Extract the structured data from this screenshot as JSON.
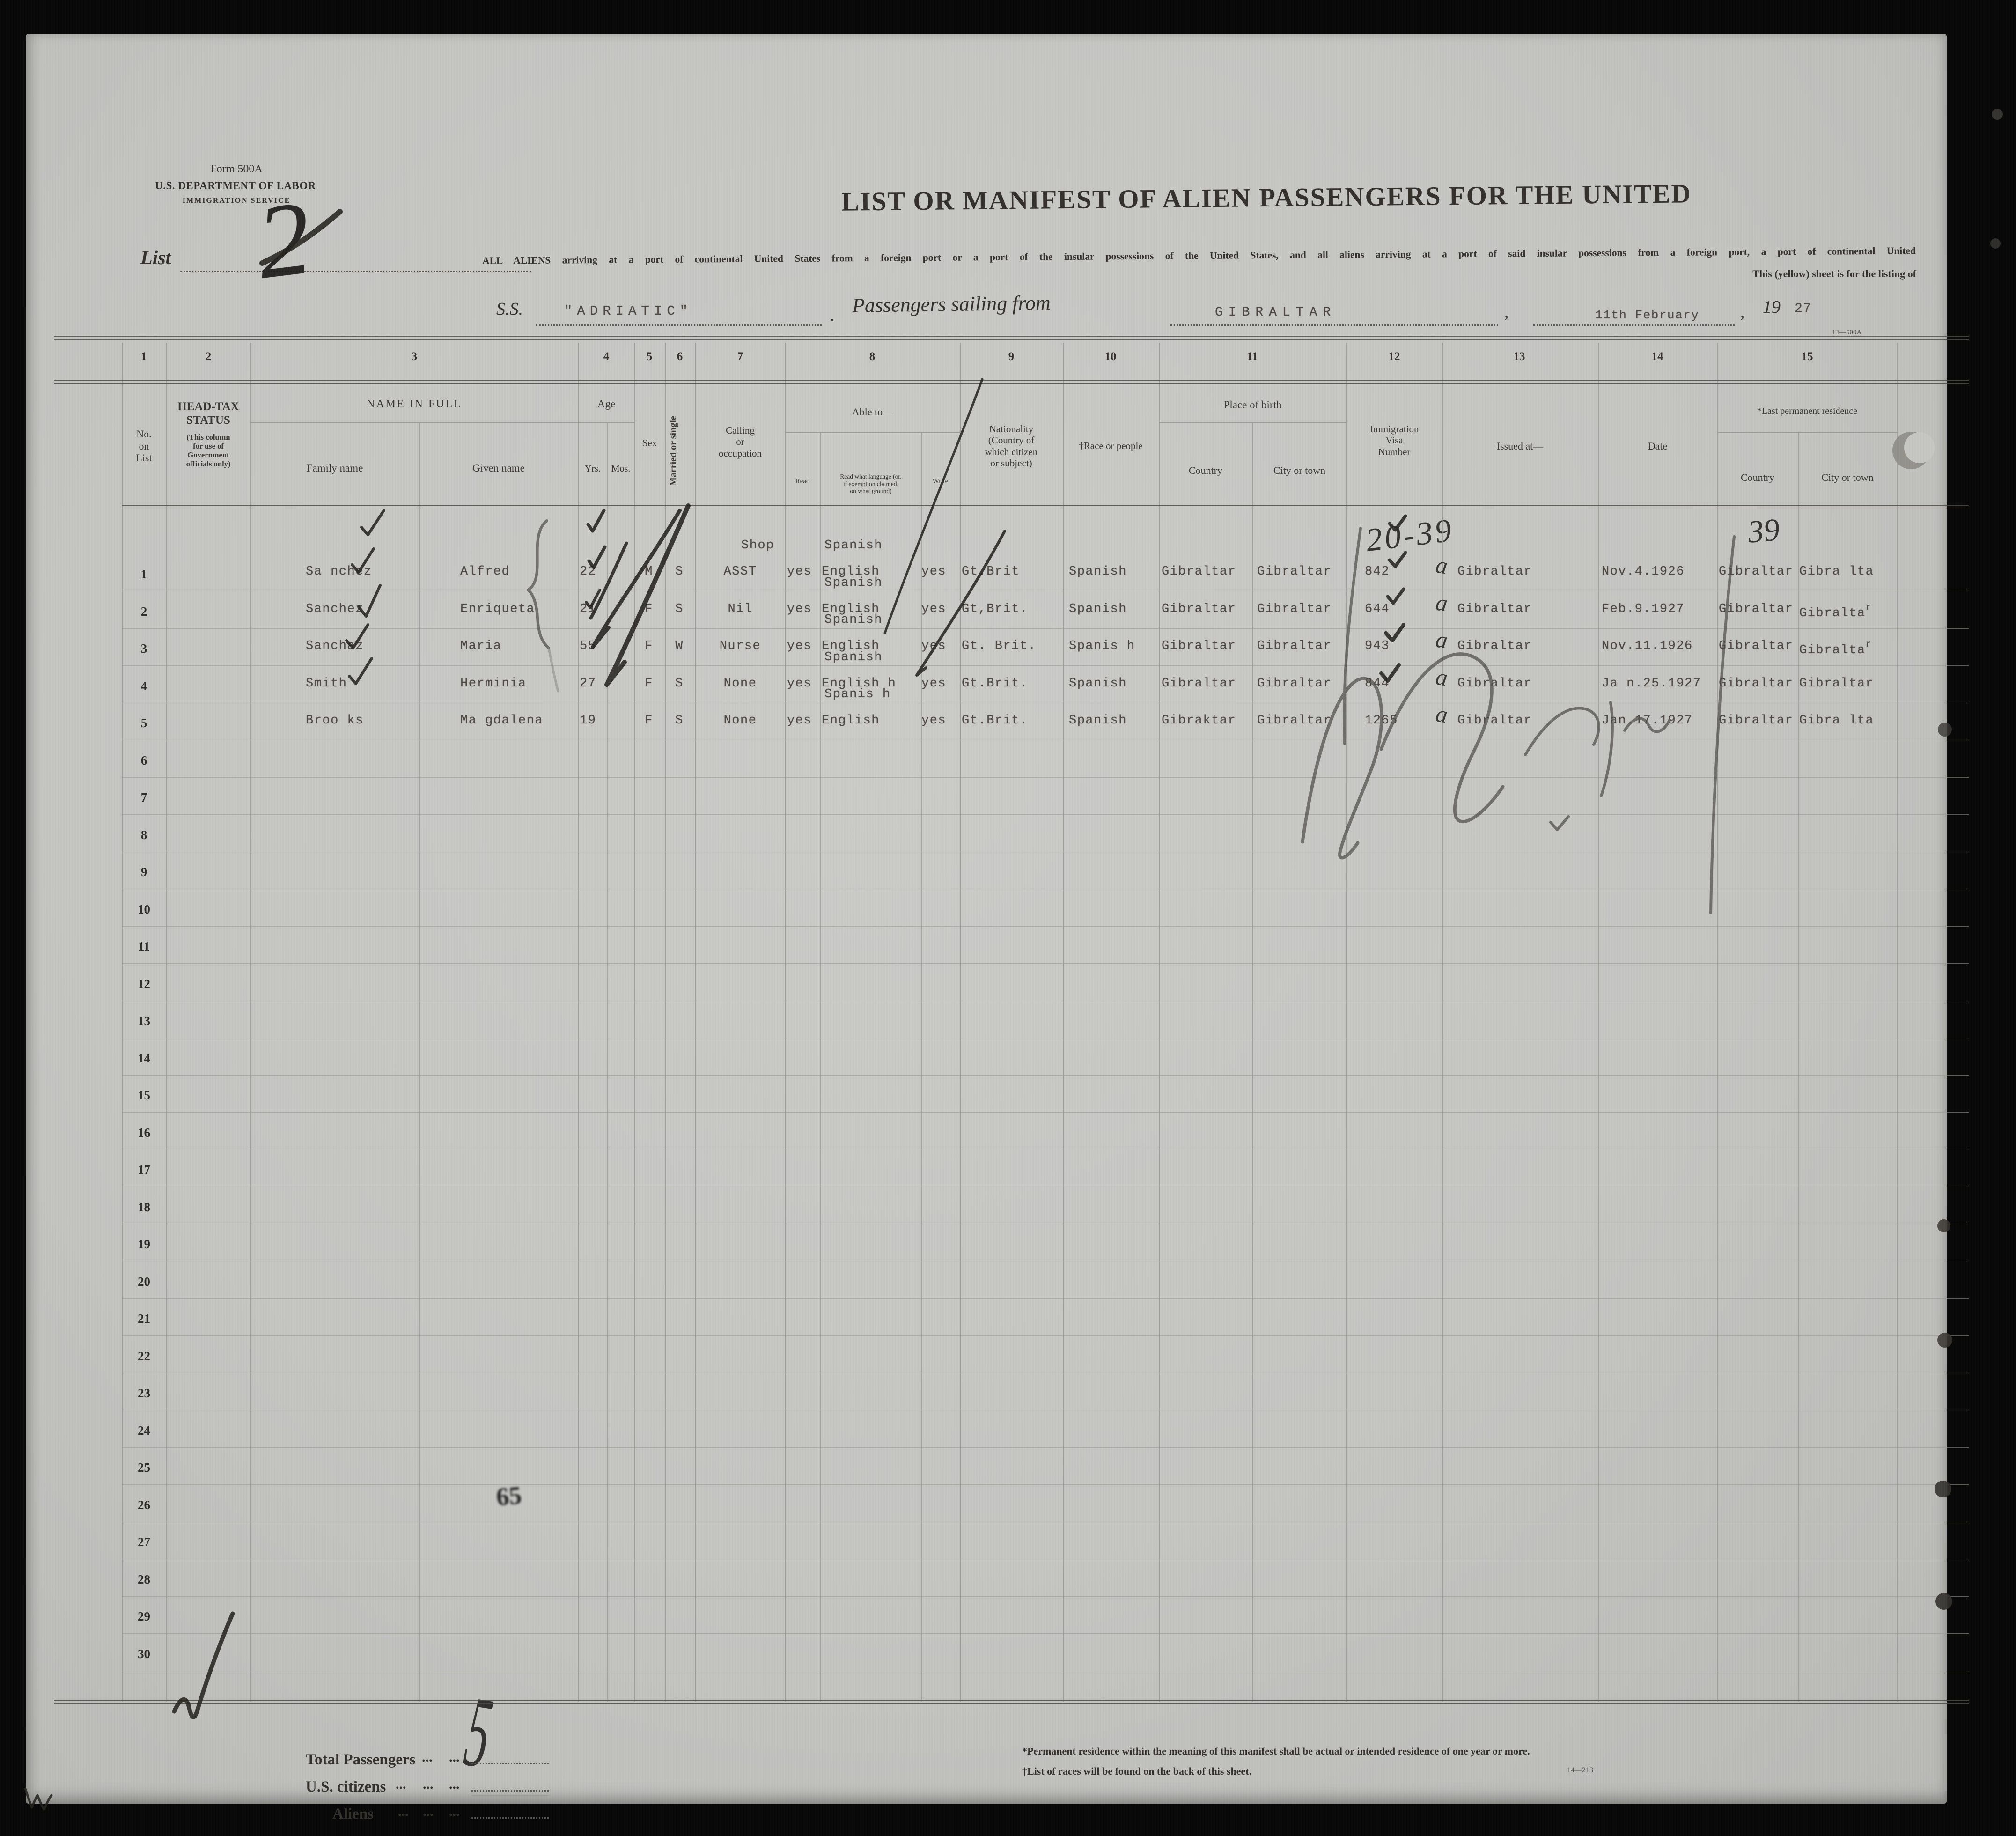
{
  "form_header": {
    "form_number": "Form 500A",
    "department": "U.S. DEPARTMENT OF LABOR",
    "service": "IMMIGRATION SERVICE",
    "list_label": "List"
  },
  "title": "LIST OR MANIFEST OF ALIEN PASSENGERS FOR THE UNITED",
  "intro_line1": "ALL ALIENS arriving at a port of continental United States from a foreign port or a port of the insular possessions of the United States, and all aliens arriving at a port of said insular possessions from a foreign port, a port of continental United",
  "intro_line2": "This (yellow) sheet is for the listing of",
  "vessel": {
    "ss_label": "S.S.",
    "ship_name": "\"ADRIATIC\"",
    "period": ".",
    "passengers_label": "Passengers sailing from",
    "port": "GIBRALTAR",
    "comma": ",",
    "sail_date": "11th February",
    "comma2": ",",
    "year_print": "19",
    "year_typed": "27",
    "form_code": "14—500A"
  },
  "table": {
    "column_numbers": [
      "1",
      "2",
      "3",
      "4",
      "5",
      "6",
      "7",
      "8",
      "9",
      "10",
      "11",
      "12",
      "13",
      "14",
      "15"
    ],
    "row_numbers": [
      "1",
      "2",
      "3",
      "4",
      "5",
      "6",
      "7",
      "8",
      "9",
      "10",
      "11",
      "12",
      "13",
      "14",
      "15",
      "16",
      "17",
      "18",
      "19",
      "20",
      "21",
      "22",
      "23",
      "24",
      "25",
      "26",
      "27",
      "28",
      "29",
      "30"
    ],
    "headers": {
      "no_on_list": "No.\non\nList",
      "head_tax_main": "HEAD-TAX\nSTATUS",
      "head_tax_sub": "(This column\nfor use of\nGovernment\nofficials only)",
      "name_main": "NAME IN FULL",
      "name_family": "Family name",
      "name_given": "Given name",
      "age_main": "Age",
      "age_yrs": "Yrs.",
      "age_mos": "Mos.",
      "sex": "Sex",
      "married": "Married or single",
      "calling": "Calling\nor\noccupation",
      "able_main": "Able to—",
      "able_read": "Read",
      "able_language": "Read what language (or,\nif exemption claimed,\non what ground)",
      "able_write": "Write",
      "nationality": "Nationality\n(Country of\nwhich citizen\nor subject)",
      "race": "†Race or people",
      "birth_main": "Place of birth",
      "birth_country": "Country",
      "birth_city": "City or town",
      "visa": "Immigration\nVisa\nNumber",
      "issued": "Issued at—",
      "date": "Date",
      "residence_main": "*Last permanent residence",
      "residence_country": "Country",
      "residence_city": "City or town"
    },
    "passengers": [
      {
        "family": "Sa nchez",
        "given": "Alfred",
        "yrs": "22",
        "sex": "M",
        "marital": "S",
        "occupation_top": "Shop",
        "occupation": "ASST",
        "read": "yes",
        "language_top": "Spanish",
        "language": "English",
        "write": "yes",
        "nationality": "Gt.Brit",
        "race": "Spanish",
        "birth_country": "Gibraltar",
        "birth_city": "Gibraltar",
        "visa": "842",
        "issued_at": "Gibraltar",
        "date": "Nov.4.1926",
        "res_country": "Gibraltar",
        "res_city": "Gibra lta"
      },
      {
        "family": "Sanchez",
        "given": "Enriqueta",
        "yrs": "21",
        "sex": "F",
        "marital": "S",
        "occupation": "Nil",
        "read": "yes",
        "language_top": "Spanish",
        "language": "English",
        "write": "yes",
        "nationality": "Gt,Brit.",
        "race": "Spanish",
        "birth_country": "Gibraltar",
        "birth_city": "Gibraltar",
        "visa": "644",
        "issued_at": "Gibraltar",
        "date": "Feb.9.1927",
        "res_country": "Gibraltar",
        "res_city": "Gibralta",
        "res_city_sup": "r"
      },
      {
        "family": "Sanchaz",
        "given": "Maria",
        "yrs": "55",
        "sex": "F",
        "marital": "W",
        "occupation": "Nurse",
        "read": "yes",
        "language_top": "Spanish",
        "language": "English",
        "write": "yes",
        "nationality": "Gt. Brit.",
        "race": "Spanis h",
        "birth_country": "Gibraltar",
        "birth_city": "Gibraltar",
        "visa": "943",
        "issued_at": "Gibraltar",
        "date": "Nov.11.1926",
        "res_country": "Gibraltar",
        "res_city": "Gibralta",
        "res_city_sup": "r"
      },
      {
        "family": "Smith",
        "given": "Herminia",
        "yrs": "27",
        "sex": "F",
        "marital": "S",
        "occupation": "None",
        "read": "yes",
        "language_top": "Spanish",
        "language": "English h",
        "write": "yes",
        "nationality": "Gt.Brit.",
        "race": "Spanish",
        "birth_country": "Gibraltar",
        "birth_city": "Gibraltar",
        "visa": "844",
        "issued_at": "Gibraltar",
        "date": "Ja n.25.1927",
        "res_country": "Gibraltar",
        "res_city": "Gibraltar"
      },
      {
        "family": "Broo ks",
        "given": "Ma gdalena",
        "yrs": "19",
        "sex": "F",
        "marital": "S",
        "occupation": "None",
        "read": "yes",
        "language_top": "Spanis h",
        "language": "English",
        "write": "yes",
        "nationality": "Gt.Brit.",
        "race": "Spanish",
        "birth_country": "Gibraktar",
        "birth_city": "Gibraltar",
        "visa": "1265",
        "issued_at": "Gibraltar",
        "date": "Jan.17.1927",
        "res_country": "Gibraltar",
        "res_city": "Gibra lta"
      }
    ]
  },
  "annotations": {
    "list_number": "2",
    "group_range": "20-39",
    "residence_group": "39",
    "visa_initial": "a",
    "stamp_number": "65",
    "passenger_total": "5"
  },
  "totals": {
    "total_label": "Total Passengers",
    "us_citizens_label": "U.S. citizens",
    "aliens_label": "Aliens",
    "dot_group": "..."
  },
  "footnotes": {
    "permanent_residence": "*Permanent residence within the meaning of this manifest shall be actual or intended residence of one year or more.",
    "races": "†List of races will be found on the back of this sheet.",
    "print_code": "14—213"
  }
}
